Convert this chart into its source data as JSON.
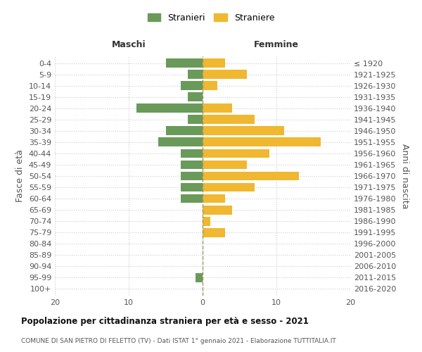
{
  "age_groups": [
    "0-4",
    "5-9",
    "10-14",
    "15-19",
    "20-24",
    "25-29",
    "30-34",
    "35-39",
    "40-44",
    "45-49",
    "50-54",
    "55-59",
    "60-64",
    "65-69",
    "70-74",
    "75-79",
    "80-84",
    "85-89",
    "90-94",
    "95-99",
    "100+"
  ],
  "birth_years": [
    "2016-2020",
    "2011-2015",
    "2006-2010",
    "2001-2005",
    "1996-2000",
    "1991-1995",
    "1986-1990",
    "1981-1985",
    "1976-1980",
    "1971-1975",
    "1966-1970",
    "1961-1965",
    "1956-1960",
    "1951-1955",
    "1946-1950",
    "1941-1945",
    "1936-1940",
    "1931-1935",
    "1926-1930",
    "1921-1925",
    "≤ 1920"
  ],
  "maschi": [
    5,
    2,
    3,
    2,
    9,
    2,
    5,
    6,
    3,
    3,
    3,
    3,
    3,
    0,
    0,
    0,
    0,
    0,
    0,
    1,
    0
  ],
  "femmine": [
    3,
    6,
    2,
    0,
    4,
    7,
    11,
    16,
    9,
    6,
    13,
    7,
    3,
    4,
    1,
    3,
    0,
    0,
    0,
    0,
    0
  ],
  "bar_color_maschi": "#6a9a5a",
  "bar_color_femmine": "#f0b830",
  "background_color": "#ffffff",
  "grid_color": "#cccccc",
  "title": "Popolazione per cittadinanza straniera per età e sesso - 2021",
  "subtitle": "COMUNE DI SAN PIETRO DI FELETTO (TV) - Dati ISTAT 1° gennaio 2021 - Elaborazione TUTTITALIA.IT",
  "ylabel_left": "Fasce di età",
  "ylabel_right": "Anni di nascita",
  "label_maschi": "Maschi",
  "label_femmine": "Femmine",
  "legend_stranieri": "Stranieri",
  "legend_straniere": "Straniere",
  "xlim": 20,
  "bar_height": 0.8
}
